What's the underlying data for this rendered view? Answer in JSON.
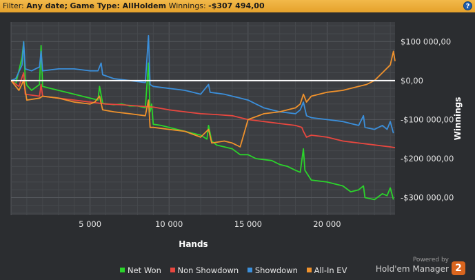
{
  "filter": {
    "label": "Filter:",
    "date": "Any date;",
    "game_type": "Game Type: AllHoldem",
    "winnings_label": "Winnings:",
    "winnings_value": "-$307 494,00",
    "help_glyph": "?"
  },
  "brand": {
    "powered": "Powered by",
    "name": "Hold'em Manager",
    "logo_digit": "2"
  },
  "colors": {
    "net_won": "#2bd42b",
    "non_showdown": "#e8473f",
    "showdown": "#3b8fdb",
    "allin_ev": "#f0922c",
    "zero_line": "#ffffff"
  },
  "chart_data": {
    "type": "line",
    "xlabel": "Hands",
    "ylabel": "Winnings",
    "xlim": [
      0,
      24300
    ],
    "ylim": [
      -345000,
      150000
    ],
    "x_ticks": [
      5000,
      10000,
      15000,
      20000
    ],
    "x_tick_labels": [
      "5 000",
      "10 000",
      "15 000",
      "20 000"
    ],
    "y_ticks": [
      100000,
      0,
      -100000,
      -200000,
      -300000
    ],
    "y_tick_labels": [
      "$100 000,00",
      "$0,00",
      "-$100 000,00",
      "-$200 000,00",
      "-$300 000,00"
    ],
    "grid": true,
    "legend_position": "bottom",
    "series": [
      {
        "name": "Net Won",
        "color": "#2bd42b",
        "points": [
          [
            0,
            0
          ],
          [
            300,
            -8000
          ],
          [
            700,
            60000
          ],
          [
            800,
            100000
          ],
          [
            900,
            5000
          ],
          [
            1000,
            -12000
          ],
          [
            1300,
            -25000
          ],
          [
            1800,
            -10000
          ],
          [
            1900,
            90000
          ],
          [
            2000,
            -15000
          ],
          [
            2500,
            -20000
          ],
          [
            3000,
            -25000
          ],
          [
            3500,
            -30000
          ],
          [
            4000,
            -35000
          ],
          [
            5000,
            -45000
          ],
          [
            5500,
            -50000
          ],
          [
            5600,
            -15000
          ],
          [
            5800,
            -58000
          ],
          [
            6500,
            -62000
          ],
          [
            7000,
            -60000
          ],
          [
            7500,
            -65000
          ],
          [
            8000,
            -65000
          ],
          [
            8500,
            -70000
          ],
          [
            8700,
            45000
          ],
          [
            8800,
            -80000
          ],
          [
            8900,
            -60000
          ],
          [
            9000,
            -112000
          ],
          [
            9500,
            -115000
          ],
          [
            10000,
            -120000
          ],
          [
            11000,
            -130000
          ],
          [
            11500,
            -135000
          ],
          [
            12000,
            -140000
          ],
          [
            12400,
            -150000
          ],
          [
            12500,
            -115000
          ],
          [
            12700,
            -155000
          ],
          [
            13000,
            -165000
          ],
          [
            14000,
            -175000
          ],
          [
            14500,
            -190000
          ],
          [
            15000,
            -190000
          ],
          [
            15500,
            -200000
          ],
          [
            16500,
            -205000
          ],
          [
            17000,
            -215000
          ],
          [
            17500,
            -220000
          ],
          [
            18000,
            -230000
          ],
          [
            18300,
            -235000
          ],
          [
            18500,
            -175000
          ],
          [
            18600,
            -230000
          ],
          [
            19000,
            -255000
          ],
          [
            20000,
            -260000
          ],
          [
            20500,
            -265000
          ],
          [
            21000,
            -270000
          ],
          [
            21500,
            -285000
          ],
          [
            22000,
            -280000
          ],
          [
            22300,
            -270000
          ],
          [
            22400,
            -300000
          ],
          [
            23000,
            -305000
          ],
          [
            23500,
            -290000
          ],
          [
            23800,
            -295000
          ],
          [
            24000,
            -275000
          ],
          [
            24200,
            -305000
          ]
        ]
      },
      {
        "name": "Non Showdown",
        "color": "#e8473f",
        "points": [
          [
            0,
            0
          ],
          [
            500,
            -15000
          ],
          [
            800,
            20000
          ],
          [
            900,
            -35000
          ],
          [
            1800,
            -40000
          ],
          [
            1900,
            -10000
          ],
          [
            2000,
            -40000
          ],
          [
            3000,
            -45000
          ],
          [
            4000,
            -50000
          ],
          [
            5000,
            -55000
          ],
          [
            6000,
            -60000
          ],
          [
            7000,
            -62000
          ],
          [
            8000,
            -65000
          ],
          [
            9000,
            -68000
          ],
          [
            10000,
            -75000
          ],
          [
            11000,
            -80000
          ],
          [
            12000,
            -85000
          ],
          [
            13000,
            -87000
          ],
          [
            14000,
            -90000
          ],
          [
            15000,
            -100000
          ],
          [
            16000,
            -105000
          ],
          [
            17000,
            -110000
          ],
          [
            18000,
            -115000
          ],
          [
            18400,
            -120000
          ],
          [
            18500,
            -130000
          ],
          [
            18700,
            -145000
          ],
          [
            19000,
            -140000
          ],
          [
            20000,
            -145000
          ],
          [
            21000,
            -155000
          ],
          [
            22000,
            -160000
          ],
          [
            23000,
            -165000
          ],
          [
            24000,
            -170000
          ],
          [
            24300,
            -172000
          ]
        ]
      },
      {
        "name": "Showdown",
        "color": "#3b8fdb",
        "points": [
          [
            0,
            0
          ],
          [
            300,
            5000
          ],
          [
            700,
            40000
          ],
          [
            800,
            100000
          ],
          [
            900,
            30000
          ],
          [
            1300,
            25000
          ],
          [
            1800,
            35000
          ],
          [
            1900,
            75000
          ],
          [
            2000,
            25000
          ],
          [
            3000,
            30000
          ],
          [
            4000,
            30000
          ],
          [
            5000,
            25000
          ],
          [
            5500,
            25000
          ],
          [
            5700,
            45000
          ],
          [
            5800,
            15000
          ],
          [
            6500,
            5000
          ],
          [
            7500,
            0
          ],
          [
            8500,
            -5000
          ],
          [
            8700,
            115000
          ],
          [
            8800,
            -10000
          ],
          [
            9000,
            -15000
          ],
          [
            10000,
            -20000
          ],
          [
            11000,
            -25000
          ],
          [
            11500,
            -30000
          ],
          [
            12000,
            -35000
          ],
          [
            12500,
            -10000
          ],
          [
            12600,
            -30000
          ],
          [
            13500,
            -35000
          ],
          [
            14000,
            -40000
          ],
          [
            14500,
            -45000
          ],
          [
            15000,
            -50000
          ],
          [
            15500,
            -60000
          ],
          [
            16000,
            -70000
          ],
          [
            17000,
            -80000
          ],
          [
            18000,
            -85000
          ],
          [
            18300,
            -75000
          ],
          [
            18500,
            -55000
          ],
          [
            18700,
            -90000
          ],
          [
            19000,
            -95000
          ],
          [
            20000,
            -100000
          ],
          [
            21000,
            -105000
          ],
          [
            21500,
            -110000
          ],
          [
            22000,
            -115000
          ],
          [
            22300,
            -90000
          ],
          [
            22400,
            -120000
          ],
          [
            23000,
            -125000
          ],
          [
            23500,
            -115000
          ],
          [
            23800,
            -125000
          ],
          [
            24000,
            -105000
          ],
          [
            24200,
            -135000
          ]
        ]
      },
      {
        "name": "All-In EV",
        "color": "#f0922c",
        "points": [
          [
            0,
            0
          ],
          [
            500,
            -25000
          ],
          [
            800,
            0
          ],
          [
            1000,
            -50000
          ],
          [
            1800,
            -45000
          ],
          [
            2000,
            -40000
          ],
          [
            3000,
            -45000
          ],
          [
            4000,
            -55000
          ],
          [
            5000,
            -60000
          ],
          [
            5300,
            -55000
          ],
          [
            5600,
            -40000
          ],
          [
            5800,
            -75000
          ],
          [
            6500,
            -80000
          ],
          [
            7500,
            -85000
          ],
          [
            8500,
            -90000
          ],
          [
            8700,
            -50000
          ],
          [
            8800,
            -120000
          ],
          [
            9000,
            -120000
          ],
          [
            10000,
            -125000
          ],
          [
            11000,
            -130000
          ],
          [
            12000,
            -145000
          ],
          [
            12500,
            -125000
          ],
          [
            12700,
            -160000
          ],
          [
            13500,
            -155000
          ],
          [
            14000,
            -160000
          ],
          [
            14500,
            -170000
          ],
          [
            15000,
            -100000
          ],
          [
            16000,
            -85000
          ],
          [
            17000,
            -80000
          ],
          [
            18000,
            -70000
          ],
          [
            18300,
            -60000
          ],
          [
            18500,
            -35000
          ],
          [
            18700,
            -55000
          ],
          [
            19000,
            -40000
          ],
          [
            20000,
            -30000
          ],
          [
            21000,
            -25000
          ],
          [
            22000,
            -15000
          ],
          [
            22500,
            -10000
          ],
          [
            23000,
            0
          ],
          [
            23500,
            20000
          ],
          [
            24000,
            40000
          ],
          [
            24200,
            75000
          ],
          [
            24300,
            50000
          ]
        ]
      }
    ]
  }
}
